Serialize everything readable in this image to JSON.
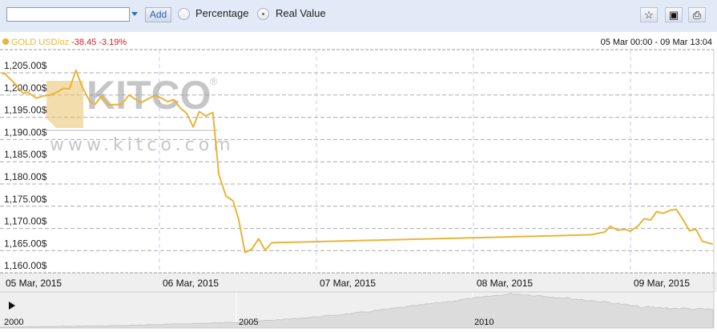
{
  "toolbar": {
    "symbol_input_value": "",
    "add_label": "Add",
    "radio_options": [
      {
        "label": "Percentage",
        "selected": false
      },
      {
        "label": "Real Value",
        "selected": true
      }
    ],
    "icons": [
      "star-icon",
      "save-icon",
      "print-icon"
    ]
  },
  "legend": {
    "name": "GOLD USD/oz",
    "change": "-38.45",
    "change_pct": "-3.19%",
    "series_color": "#e8b53a",
    "change_color": "#d0202a"
  },
  "date_range": "05 Mar 00:00 - 09 Mar 13:04",
  "watermark": {
    "brand": "KITCO",
    "url": "www.kitco.com"
  },
  "navigator": {
    "play_icon": "play-icon",
    "year_labels": [
      "2000",
      "2005",
      "2010"
    ]
  },
  "chart_data": {
    "type": "line",
    "title": "",
    "xlabel": "",
    "ylabel": "",
    "ylim": [
      1160,
      1210
    ],
    "y_ticks": [
      "1,160.00$",
      "1,165.00$",
      "1,170.00$",
      "1,175.00$",
      "1,180.00$",
      "1,185.00$",
      "1,190.00$",
      "1,195.00$",
      "1,200.00$",
      "1,205.00$"
    ],
    "y_tick_values": [
      1160,
      1165,
      1170,
      1175,
      1180,
      1185,
      1190,
      1195,
      1200,
      1205
    ],
    "x_ticks": [
      "05 Mar, 2015",
      "06 Mar, 2015",
      "07 Mar, 2015",
      "08 Mar, 2015",
      "09 Mar, 2015"
    ],
    "xlim": [
      "2015-03-05 00:00",
      "2015-03-09 13:04"
    ],
    "grid": true,
    "series": [
      {
        "name": "GOLD USD/oz",
        "color": "#e8b53a",
        "points": [
          [
            "2015-03-05 00:00",
            1204.6
          ],
          [
            "2015-03-05 00:15",
            1205.0
          ],
          [
            "2015-03-05 02:05",
            1202.3
          ],
          [
            "2015-03-05 03:10",
            1200.4
          ],
          [
            "2015-03-05 03:55",
            1200.6
          ],
          [
            "2015-03-05 05:10",
            1199.3
          ],
          [
            "2015-03-05 06:20",
            1199.8
          ],
          [
            "2015-03-05 07:20",
            1200.0
          ],
          [
            "2015-03-05 08:25",
            1200.7
          ],
          [
            "2015-03-05 09:20",
            1201.5
          ],
          [
            "2015-03-05 10:15",
            1201.4
          ],
          [
            "2015-03-05 11:15",
            1205.6
          ],
          [
            "2015-03-05 12:05",
            1202.2
          ],
          [
            "2015-03-05 13:20",
            1198.6
          ],
          [
            "2015-03-05 14:10",
            1197.9
          ],
          [
            "2015-03-05 15:10",
            1199.8
          ],
          [
            "2015-03-05 16:10",
            1197.8
          ],
          [
            "2015-03-05 18:15",
            1197.9
          ],
          [
            "2015-03-05 19:20",
            1200.0
          ],
          [
            "2015-03-05 21:10",
            1198.3
          ],
          [
            "2015-03-05 23:15",
            1199.9
          ],
          [
            "2015-03-06 00:20",
            1199.3
          ],
          [
            "2015-03-06 01:15",
            1198.5
          ],
          [
            "2015-03-06 02:10",
            1199.0
          ],
          [
            "2015-03-06 03:10",
            1197.1
          ],
          [
            "2015-03-06 04:10",
            1195.9
          ],
          [
            "2015-03-06 05:10",
            1192.8
          ],
          [
            "2015-03-06 06:05",
            1196.3
          ],
          [
            "2015-03-06 07:05",
            1195.3
          ],
          [
            "2015-03-06 08:10",
            1196.1
          ],
          [
            "2015-03-06 09:05",
            1182.1
          ],
          [
            "2015-03-06 10:10",
            1177.3
          ],
          [
            "2015-03-06 11:15",
            1176.2
          ],
          [
            "2015-03-06 12:05",
            1172.2
          ],
          [
            "2015-03-06 13:05",
            1164.6
          ],
          [
            "2015-03-06 14:05",
            1165.3
          ],
          [
            "2015-03-06 15:10",
            1167.7
          ],
          [
            "2015-03-06 16:10",
            1165.1
          ],
          [
            "2015-03-06 17:10",
            1166.8
          ],
          [
            "2015-03-08 13:20",
            1168.4
          ],
          [
            "2015-03-08 18:00",
            1168.6
          ],
          [
            "2015-03-08 20:05",
            1169.2
          ],
          [
            "2015-03-08 20:55",
            1170.5
          ],
          [
            "2015-03-08 22:00",
            1169.6
          ],
          [
            "2015-03-08 23:10",
            1169.8
          ],
          [
            "2015-03-09 00:00",
            1169.4
          ],
          [
            "2015-03-09 01:10",
            1170.6
          ],
          [
            "2015-03-09 02:05",
            1172.2
          ],
          [
            "2015-03-09 03:05",
            1171.9
          ],
          [
            "2015-03-09 04:00",
            1173.8
          ],
          [
            "2015-03-09 05:00",
            1173.4
          ],
          [
            "2015-03-09 06:05",
            1174.1
          ],
          [
            "2015-03-09 07:00",
            1174.3
          ],
          [
            "2015-03-09 08:05",
            1171.9
          ],
          [
            "2015-03-09 09:00",
            1169.5
          ],
          [
            "2015-03-09 10:00",
            1169.8
          ],
          [
            "2015-03-09 11:00",
            1167.1
          ],
          [
            "2015-03-09 12:35",
            1166.5
          ]
        ]
      }
    ]
  }
}
